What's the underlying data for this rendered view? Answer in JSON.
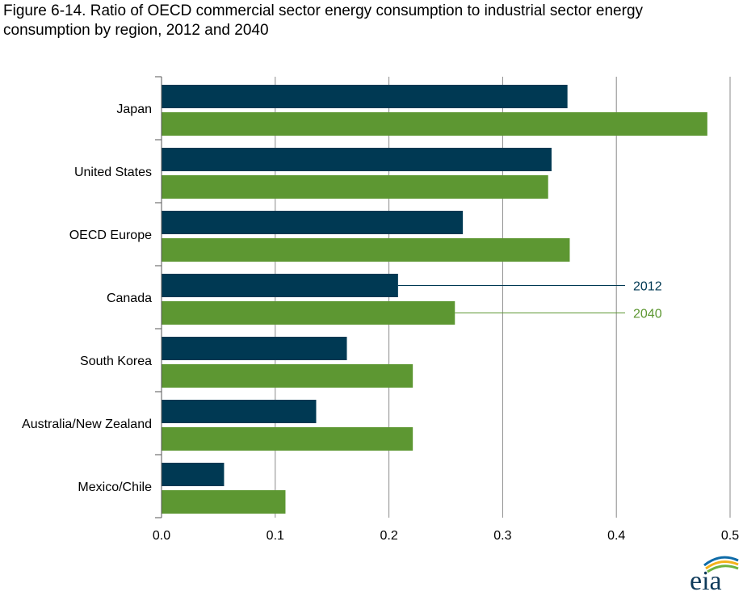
{
  "chart_data": {
    "type": "bar",
    "orientation": "horizontal",
    "title": "Figure 6-14. Ratio of OECD commercial sector energy consumption to industrial sector energy consumption by region, 2012 and 2040",
    "xlabel": "",
    "ylabel": "",
    "xlim": [
      0,
      0.5
    ],
    "x_ticks": [
      "0.0",
      "0.1",
      "0.2",
      "0.3",
      "0.4",
      "0.5"
    ],
    "x_tick_values": [
      0,
      0.1,
      0.2,
      0.3,
      0.4,
      0.5
    ],
    "grid": "vertical",
    "categories": [
      "Japan",
      "United States",
      "OECD Europe",
      "Canada",
      "South Korea",
      "Australia/New Zealand",
      "Mexico/Chile"
    ],
    "series": [
      {
        "name": "2012",
        "color": "#003953",
        "values": [
          0.357,
          0.343,
          0.265,
          0.208,
          0.163,
          0.136,
          0.055
        ]
      },
      {
        "name": "2040",
        "color": "#5d9732",
        "values": [
          0.48,
          0.34,
          0.359,
          0.258,
          0.221,
          0.221,
          0.109
        ]
      }
    ],
    "legend_placement": "inline-right-of-canada"
  },
  "logo": {
    "text": "eia",
    "colors": [
      "#0e6ba8",
      "#f3b21a",
      "#6db33f"
    ]
  }
}
